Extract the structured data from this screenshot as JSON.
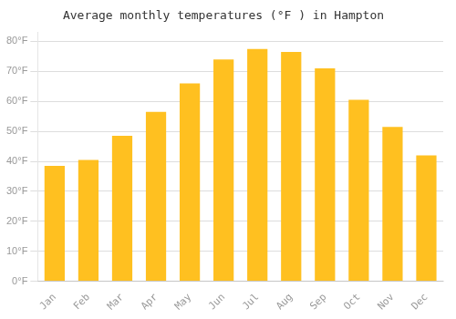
{
  "chart_data": {
    "type": "bar",
    "title": "Average monthly temperatures (°F ) in Hampton",
    "categories": [
      "Jan",
      "Feb",
      "Mar",
      "Apr",
      "May",
      "Jun",
      "Jul",
      "Aug",
      "Sep",
      "Oct",
      "Nov",
      "Dec"
    ],
    "values": [
      38.5,
      40.5,
      48.5,
      56.5,
      66.0,
      74.0,
      77.5,
      76.5,
      71.0,
      60.5,
      51.5,
      42.0
    ],
    "color": "#FFC020",
    "ylim": [
      0,
      83
    ],
    "yticks": [
      {
        "value": 0,
        "label": "0°F"
      },
      {
        "value": 10,
        "label": "10°F"
      },
      {
        "value": 20,
        "label": "20°F"
      },
      {
        "value": 30,
        "label": "30°F"
      },
      {
        "value": 40,
        "label": "40°F"
      },
      {
        "value": 50,
        "label": "50°F"
      },
      {
        "value": 60,
        "label": "60°F"
      },
      {
        "value": 70,
        "label": "70°F"
      },
      {
        "value": 80,
        "label": "80°F"
      }
    ],
    "grid": true
  }
}
